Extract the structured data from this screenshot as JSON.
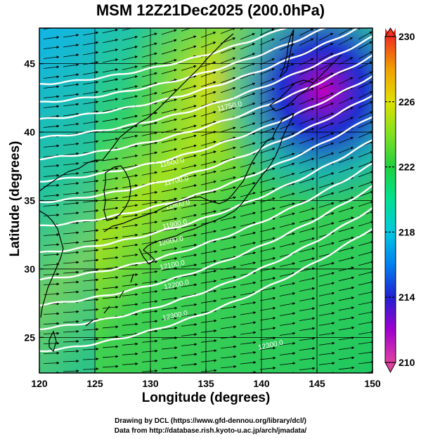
{
  "title": "MSM 12Z21Dec2025 (200.0hPa)",
  "xlabel": "Longitude (degrees)",
  "ylabel": "Latitude  (degrees)",
  "credits": {
    "line1": "Drawing by DCL (https://www.gfd-dennou.org/library/dcl/)",
    "line2": "Data from http://database.rish.kyoto-u.ac.jp/arch/jmadata/"
  },
  "map_data": {
    "type": "filled-contour-with-vectors",
    "lon_range": [
      120,
      150
    ],
    "lat_range": [
      22.4,
      47.6
    ],
    "x_ticks": [
      "120",
      "125",
      "130",
      "135",
      "140",
      "145",
      "150"
    ],
    "y_ticks": [
      "25",
      "30",
      "35",
      "40",
      "45"
    ],
    "colorbar": {
      "min": 210,
      "max": 230,
      "labels": [
        "210",
        "214",
        "218",
        "222",
        "226",
        "230"
      ],
      "colors": [
        "#e040a0",
        "#a000d0",
        "#2020d0",
        "#0080f0",
        "#00c8e0",
        "#00e090",
        "#20d040",
        "#80e020",
        "#e0e000",
        "#f0a000",
        "#f03020"
      ]
    },
    "contour_labels": [
      "11750.0",
      "11600.0",
      "11700.0",
      "11800.0",
      "11900.0",
      "12000.0",
      "12100.0",
      "12200.0",
      "12300.0"
    ],
    "colors": {
      "contour": "#ffffff",
      "vector": "#000000",
      "coast": "#000000"
    }
  }
}
